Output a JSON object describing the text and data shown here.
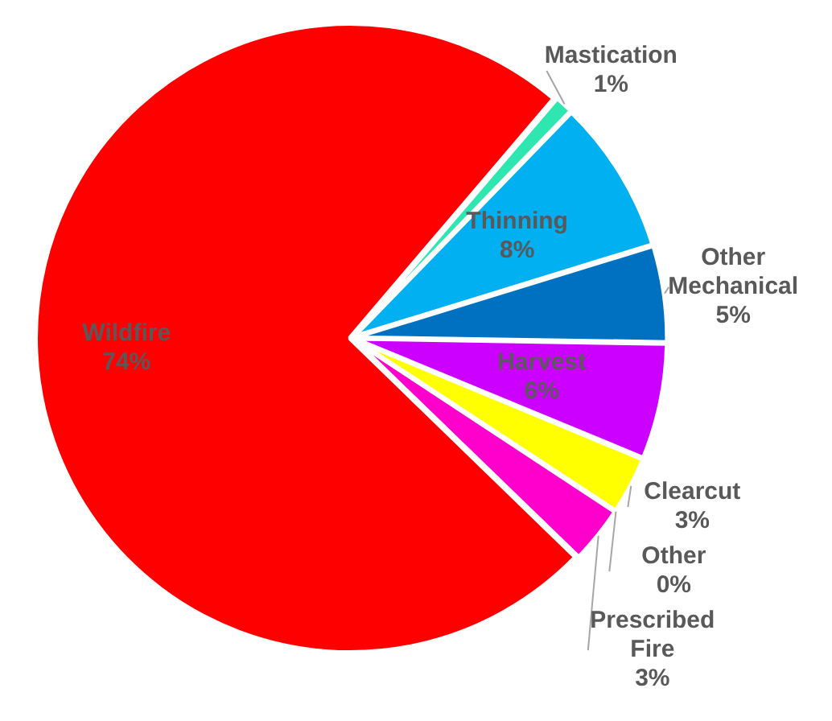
{
  "chart_data": {
    "type": "pie",
    "categories": [
      "Mastication",
      "Thinning",
      "Other Mechanical",
      "Harvest",
      "Clearcut",
      "Other",
      "Prescribed Fire",
      "Wildfire"
    ],
    "values": [
      1,
      8,
      5,
      6,
      3,
      0,
      3,
      74
    ],
    "colors": [
      "#2ee6b0",
      "#00b0f0",
      "#0070c0",
      "#cc00ff",
      "#ffff00",
      "#ffc000",
      "#ff00cc",
      "#ff0000"
    ],
    "value_labels": [
      "1%",
      "8%",
      "5%",
      "6%",
      "3%",
      "0%",
      "3%",
      "74%"
    ],
    "legend": false
  }
}
